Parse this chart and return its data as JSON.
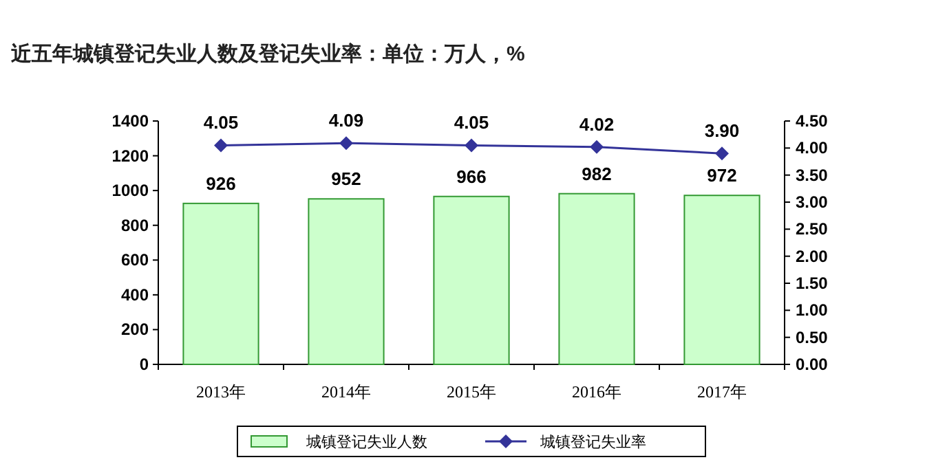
{
  "chart_data": {
    "type": "bar",
    "title": "近五年城镇登记失业人数及登记失业率：单位：万人，%",
    "categories": [
      "2013年",
      "2014年",
      "2015年",
      "2016年",
      "2017年"
    ],
    "series": [
      {
        "name": "城镇登记失业人数",
        "color": "#ccffcc",
        "values": [
          926,
          952,
          966,
          982,
          972
        ],
        "value_labels": [
          "926",
          "952",
          "966",
          "982",
          "972"
        ]
      },
      {
        "name": "城镇登记失业率",
        "type": "line",
        "axis": "y2",
        "color": "#333399",
        "values": [
          4.05,
          4.09,
          4.05,
          4.02,
          3.9
        ],
        "value_labels": [
          "4.05",
          "4.09",
          "4.05",
          "4.02",
          "3.90"
        ]
      }
    ],
    "ylim": [
      0,
      1400
    ],
    "yticks": [
      0,
      200,
      400,
      600,
      800,
      1000,
      1200,
      1400
    ],
    "y2lim": [
      0,
      4.5
    ],
    "y2ticks": [
      {
        "value": 0,
        "label": "0.00"
      },
      {
        "value": 0.5,
        "label": "0.50"
      },
      {
        "value": 1,
        "label": "1.00"
      },
      {
        "value": 1.5,
        "label": "1.50"
      },
      {
        "value": 2,
        "label": "2.00"
      },
      {
        "value": 2.5,
        "label": "2.50"
      },
      {
        "value": 3,
        "label": "3.00"
      },
      {
        "value": 3.5,
        "label": "3.50"
      },
      {
        "value": 4,
        "label": "4.00"
      },
      {
        "value": 4.5,
        "label": "4.50"
      }
    ],
    "marker": "diamond",
    "line_style": "solid",
    "legend": "bottom"
  }
}
